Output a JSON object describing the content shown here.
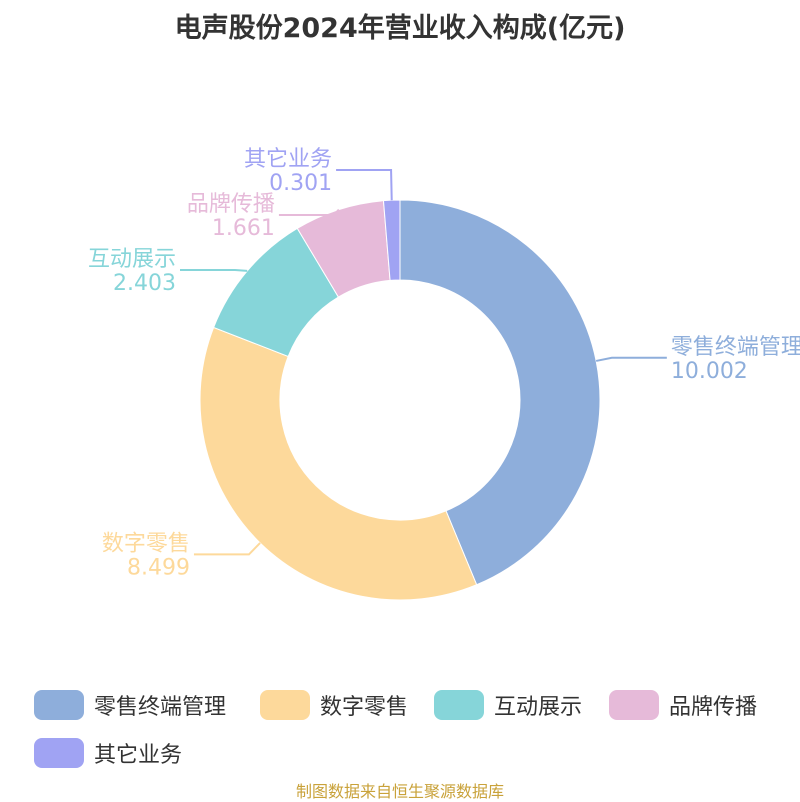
{
  "title": "电声股份2024年营业收入构成(亿元)",
  "source": "制图数据来自恒生聚源数据库",
  "chart_data": {
    "type": "pie",
    "variant": "donut",
    "title": "电声股份2024年营业收入构成(亿元)",
    "legend_position": "bottom",
    "series": [
      {
        "name": "零售终端管理",
        "value": 10.002,
        "label_value": "10.002",
        "color": "#8eaedb"
      },
      {
        "name": "数字零售",
        "value": 8.499,
        "label_value": "8.499",
        "color": "#fdd99b"
      },
      {
        "name": "互动展示",
        "value": 2.403,
        "label_value": "2.403",
        "color": "#86d5d9"
      },
      {
        "name": "品牌传播",
        "value": 1.661,
        "label_value": "1.661",
        "color": "#e6bad9"
      },
      {
        "name": "其它业务",
        "value": 0.301,
        "label_value": "0.301",
        "color": "#a0a3f3"
      }
    ]
  }
}
